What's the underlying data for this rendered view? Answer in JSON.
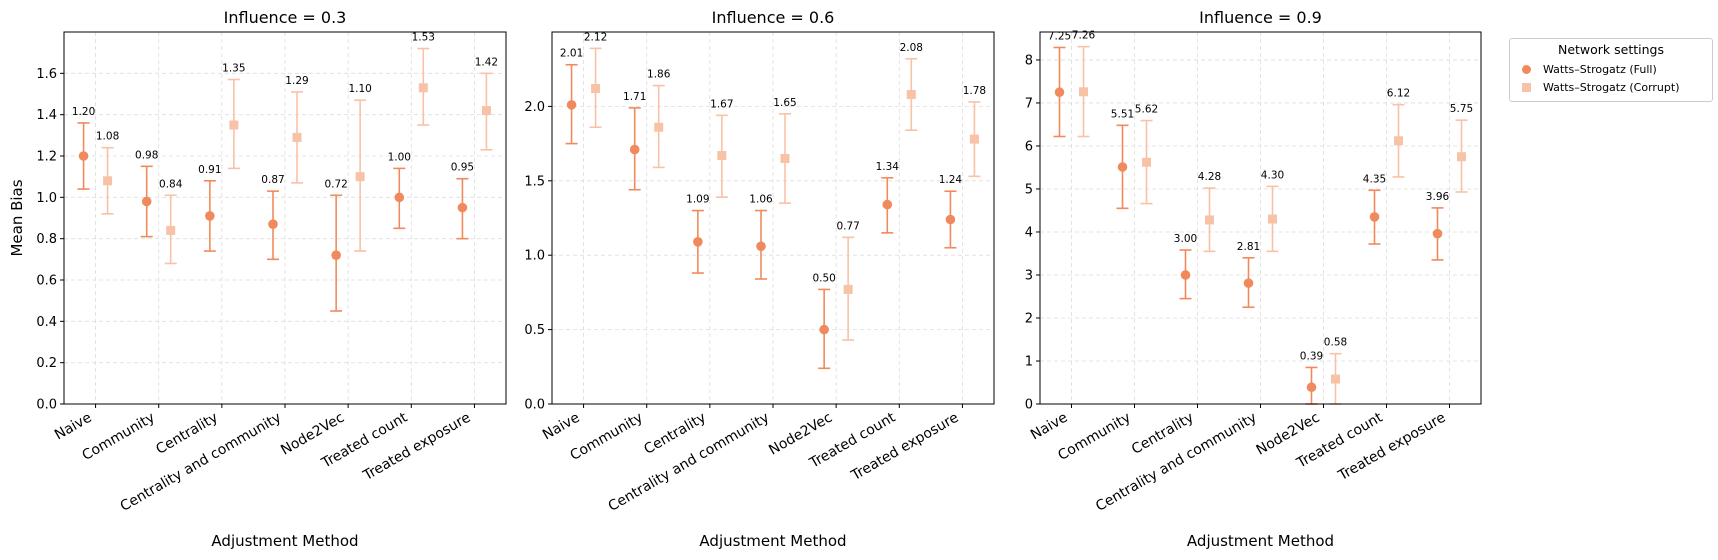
{
  "chart_data": [
    {
      "type": "scatter",
      "title": "Influence = 0.3",
      "xlabel": "Adjustment Method",
      "ylabel": "Mean Bias",
      "categories": [
        "Naive",
        "Community",
        "Centrality",
        "Centrality and community",
        "Node2Vec",
        "Treated count",
        "Treated exposure"
      ],
      "ylim": [
        0,
        1.8
      ],
      "yticks": [
        "0.0",
        "0.2",
        "0.4",
        "0.6",
        "0.8",
        "1.0",
        "1.2",
        "1.4",
        "1.6"
      ],
      "grid": true,
      "series": [
        {
          "name": "Watts–Strogatz (Full)",
          "marker": "circle",
          "values": [
            1.2,
            0.98,
            0.91,
            0.87,
            0.72,
            1.0,
            0.95
          ],
          "labels": [
            "1.20",
            "0.98",
            "0.91",
            "0.87",
            "0.72",
            "1.00",
            "0.95"
          ],
          "err_low": [
            1.04,
            0.81,
            0.74,
            0.7,
            0.45,
            0.85,
            0.8
          ],
          "err_high": [
            1.36,
            1.15,
            1.08,
            1.03,
            1.01,
            1.14,
            1.09
          ]
        },
        {
          "name": "Watts–Strogatz (Corrupt)",
          "marker": "square",
          "values": [
            1.08,
            0.84,
            1.35,
            1.29,
            1.1,
            1.53,
            1.42
          ],
          "labels": [
            "1.08",
            "0.84",
            "1.35",
            "1.29",
            "1.10",
            "1.53",
            "1.42"
          ],
          "err_low": [
            0.92,
            0.68,
            1.14,
            1.07,
            0.74,
            1.35,
            1.23
          ],
          "err_high": [
            1.24,
            1.01,
            1.57,
            1.51,
            1.47,
            1.72,
            1.6
          ]
        }
      ]
    },
    {
      "type": "scatter",
      "title": "Influence = 0.6",
      "xlabel": "Adjustment Method",
      "ylabel": "",
      "categories": [
        "Naive",
        "Community",
        "Centrality",
        "Centrality and community",
        "Node2Vec",
        "Treated count",
        "Treated exposure"
      ],
      "ylim": [
        0,
        2.5
      ],
      "yticks": [
        "0.0",
        "0.5",
        "1.0",
        "1.5",
        "2.0"
      ],
      "grid": true,
      "series": [
        {
          "name": "Watts–Strogatz (Full)",
          "marker": "circle",
          "values": [
            2.01,
            1.71,
            1.09,
            1.06,
            0.5,
            1.34,
            1.24
          ],
          "labels": [
            "2.01",
            "1.71",
            "1.09",
            "1.06",
            "0.50",
            "1.34",
            "1.24"
          ],
          "err_low": [
            1.75,
            1.44,
            0.88,
            0.84,
            0.24,
            1.15,
            1.05
          ],
          "err_high": [
            2.28,
            1.99,
            1.3,
            1.3,
            0.77,
            1.52,
            1.43
          ]
        },
        {
          "name": "Watts–Strogatz (Corrupt)",
          "marker": "square",
          "values": [
            2.12,
            1.86,
            1.67,
            1.65,
            0.77,
            2.08,
            1.78
          ],
          "labels": [
            "2.12",
            "1.86",
            "1.67",
            "1.65",
            "0.77",
            "2.08",
            "1.78"
          ],
          "err_low": [
            1.86,
            1.59,
            1.39,
            1.35,
            0.43,
            1.84,
            1.53
          ],
          "err_high": [
            2.39,
            2.14,
            1.94,
            1.95,
            1.12,
            2.32,
            2.03
          ]
        }
      ]
    },
    {
      "type": "scatter",
      "title": "Influence = 0.9",
      "xlabel": "Adjustment Method",
      "ylabel": "",
      "categories": [
        "Naive",
        "Community",
        "Centrality",
        "Centrality and community",
        "Node2Vec",
        "Treated count",
        "Treated exposure"
      ],
      "ylim": [
        0,
        8.65
      ],
      "yticks": [
        "0",
        "1",
        "2",
        "3",
        "4",
        "5",
        "6",
        "7",
        "8"
      ],
      "grid": true,
      "series": [
        {
          "name": "Watts–Strogatz (Full)",
          "marker": "circle",
          "values": [
            7.25,
            5.51,
            3.0,
            2.81,
            0.39,
            4.35,
            3.96
          ],
          "labels": [
            "7.25",
            "5.51",
            "3.00",
            "2.81",
            "0.39",
            "4.35",
            "3.96"
          ],
          "err_low": [
            6.22,
            4.55,
            2.45,
            2.25,
            0.0,
            3.72,
            3.35
          ],
          "err_high": [
            8.29,
            6.48,
            3.58,
            3.4,
            0.85,
            4.97,
            4.56
          ]
        },
        {
          "name": "Watts–Strogatz (Corrupt)",
          "marker": "square",
          "values": [
            7.26,
            5.62,
            4.28,
            4.3,
            0.58,
            6.12,
            5.75
          ],
          "labels": [
            "7.26",
            "5.62",
            "4.28",
            "4.30",
            "0.58",
            "6.12",
            "5.75"
          ],
          "err_low": [
            6.22,
            4.66,
            3.55,
            3.55,
            0.0,
            5.28,
            4.93
          ],
          "err_high": [
            8.31,
            6.59,
            5.02,
            5.06,
            1.17,
            6.96,
            6.6
          ]
        }
      ]
    }
  ],
  "legend": {
    "title": "Network settings",
    "placement": "outside-right",
    "items": [
      {
        "label": "Watts–Strogatz (Full)",
        "marker": "circle"
      },
      {
        "label": "Watts–Strogatz (Corrupt)",
        "marker": "square"
      }
    ]
  },
  "colors": {
    "full": "#f08a5d",
    "corrupt": "#f8c2a6",
    "grid": "#dddddd",
    "axis": "#000000"
  }
}
